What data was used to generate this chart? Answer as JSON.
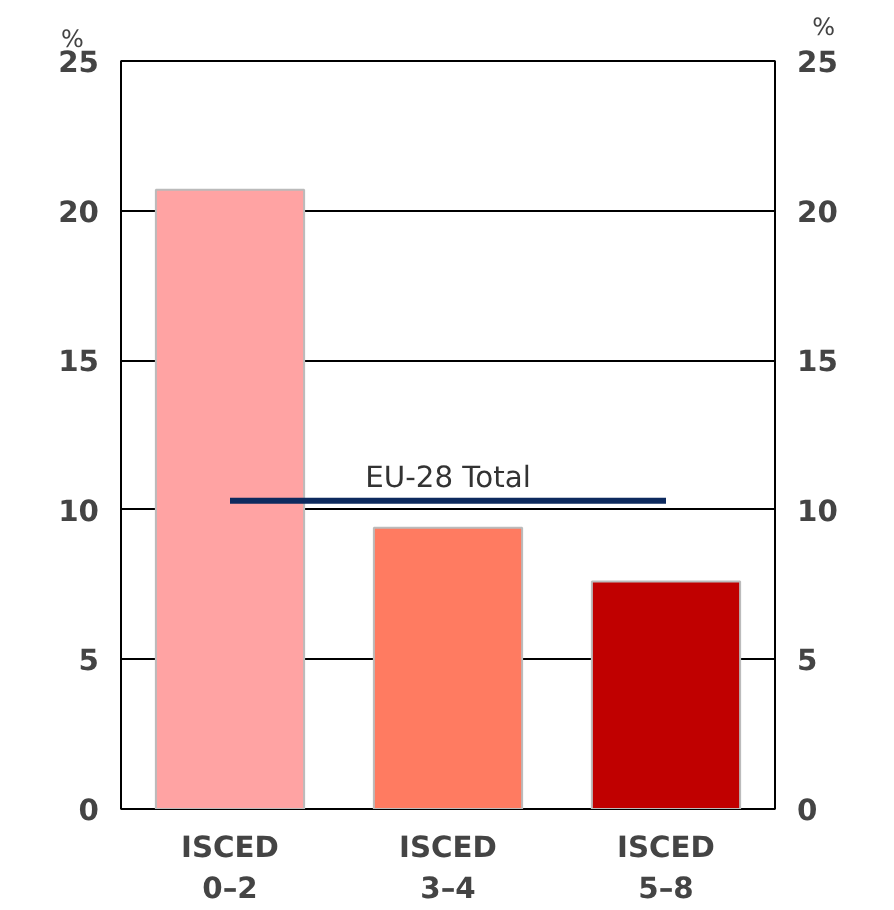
{
  "chart_data": {
    "type": "bar",
    "ylabel": "%",
    "y2label": "%",
    "categories": [
      "ISCED\n0–2",
      "ISCED\n3–4",
      "ISCED\n5–8"
    ],
    "series": [
      {
        "colors": [
          "#ffa3a3",
          "#ff7b61",
          "#c00000"
        ],
        "values": [
          20.7,
          9.4,
          7.6
        ]
      },
      {
        "type": "line",
        "name": "EU-28 Total",
        "color": "#0d2a5e",
        "values": [
          10.3,
          10.3,
          10.3
        ]
      }
    ],
    "ylim": [
      0,
      25
    ],
    "yticks": [
      0,
      5,
      10,
      15,
      20,
      25
    ],
    "y2lim": [
      0,
      25
    ],
    "y2ticks": [
      0,
      5,
      10,
      15,
      20,
      25
    ],
    "grid": "y",
    "legend": false
  }
}
